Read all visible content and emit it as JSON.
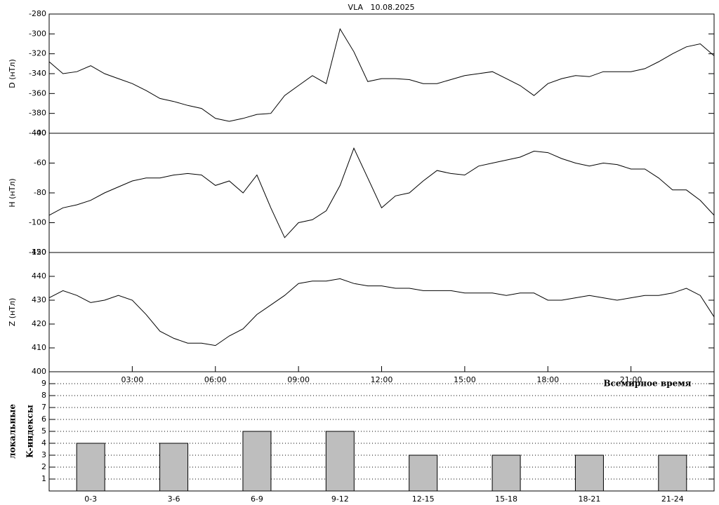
{
  "chart_data": [
    {
      "type": "line",
      "title": "VLA   10.08.2025",
      "ylabel": "D (нТл)",
      "color": "#000000",
      "xlim": [
        0,
        24
      ],
      "ylim": [
        -400,
        -280
      ],
      "yticks": [
        -400,
        -380,
        -360,
        -340,
        -320,
        -300,
        -280
      ],
      "x": [
        0,
        0.5,
        1,
        1.5,
        2,
        2.5,
        3,
        3.5,
        4,
        4.5,
        5,
        5.5,
        6,
        6.5,
        7,
        7.5,
        8,
        8.5,
        9,
        9.5,
        10,
        10.5,
        11,
        11.5,
        12,
        12.5,
        13,
        13.5,
        14,
        14.5,
        15,
        15.5,
        16,
        16.5,
        17,
        17.5,
        18,
        18.5,
        19,
        19.5,
        20,
        20.5,
        21,
        21.5,
        22,
        22.5,
        23,
        23.5,
        24
      ],
      "values": [
        -328,
        -340,
        -338,
        -332,
        -340,
        -345,
        -350,
        -357,
        -365,
        -368,
        -372,
        -375,
        -385,
        -388,
        -385,
        -381,
        -380,
        -362,
        -352,
        -342,
        -350,
        -295,
        -318,
        -348,
        -345,
        -345,
        -346,
        -350,
        -350,
        -346,
        -342,
        -340,
        -338,
        -345,
        -352,
        -362,
        -350,
        -345,
        -342,
        -343,
        -338,
        -338,
        -338,
        -335,
        -328,
        -320,
        -313,
        -310,
        -322
      ]
    },
    {
      "type": "line",
      "ylabel": "H (нТл)",
      "color": "#000000",
      "xlim": [
        0,
        24
      ],
      "ylim": [
        -120,
        -40
      ],
      "yticks": [
        -120,
        -100,
        -80,
        -60,
        -40
      ],
      "x": [
        0,
        0.5,
        1,
        1.5,
        2,
        2.5,
        3,
        3.5,
        4,
        4.5,
        5,
        5.5,
        6,
        6.5,
        7,
        7.5,
        8,
        8.5,
        9,
        9.5,
        10,
        10.5,
        11,
        11.5,
        12,
        12.5,
        13,
        13.5,
        14,
        14.5,
        15,
        15.5,
        16,
        16.5,
        17,
        17.5,
        18,
        18.5,
        19,
        19.5,
        20,
        20.5,
        21,
        21.5,
        22,
        22.5,
        23,
        23.5,
        24
      ],
      "values": [
        -95,
        -90,
        -88,
        -85,
        -80,
        -76,
        -72,
        -70,
        -70,
        -68,
        -67,
        -68,
        -75,
        -72,
        -80,
        -68,
        -90,
        -110,
        -100,
        -98,
        -92,
        -75,
        -50,
        -70,
        -90,
        -82,
        -80,
        -72,
        -65,
        -67,
        -68,
        -62,
        -60,
        -58,
        -56,
        -52,
        -53,
        -57,
        -60,
        -62,
        -60,
        -61,
        -64,
        -64,
        -70,
        -78,
        -78,
        -85,
        -95
      ]
    },
    {
      "type": "line",
      "ylabel": "Z (нТл)",
      "xlabel": "Всемирное время",
      "color": "#000000",
      "xlim": [
        0,
        24
      ],
      "ylim": [
        400,
        450
      ],
      "yticks": [
        400,
        410,
        420,
        430,
        440,
        450
      ],
      "xticks": [
        {
          "value": 3,
          "label": "03:00"
        },
        {
          "value": 6,
          "label": "06:00"
        },
        {
          "value": 9,
          "label": "09:00"
        },
        {
          "value": 12,
          "label": "12:00"
        },
        {
          "value": 15,
          "label": "15:00"
        },
        {
          "value": 18,
          "label": "18:00"
        },
        {
          "value": 21,
          "label": "21:00"
        }
      ],
      "x": [
        0,
        0.5,
        1,
        1.5,
        2,
        2.5,
        3,
        3.5,
        4,
        4.5,
        5,
        5.5,
        6,
        6.5,
        7,
        7.5,
        8,
        8.5,
        9,
        9.5,
        10,
        10.5,
        11,
        11.5,
        12,
        12.5,
        13,
        13.5,
        14,
        14.5,
        15,
        15.5,
        16,
        16.5,
        17,
        17.5,
        18,
        18.5,
        19,
        19.5,
        20,
        20.5,
        21,
        21.5,
        22,
        22.5,
        23,
        23.5,
        24
      ],
      "values": [
        431,
        434,
        432,
        429,
        430,
        432,
        430,
        424,
        417,
        414,
        412,
        412,
        411,
        415,
        418,
        424,
        428,
        432,
        437,
        438,
        438,
        439,
        437,
        436,
        436,
        435,
        435,
        434,
        434,
        434,
        433,
        433,
        433,
        432,
        433,
        433,
        430,
        430,
        431,
        432,
        431,
        430,
        431,
        432,
        432,
        433,
        435,
        432,
        423
      ]
    },
    {
      "type": "bar",
      "ylabel": [
        "локальные",
        "K-индексы"
      ],
      "color": "#bebebe",
      "grid": true,
      "ylim": [
        0,
        10
      ],
      "yticks": [
        1,
        2,
        3,
        4,
        5,
        6,
        7,
        8,
        9
      ],
      "categories": [
        "0-3",
        "3-6",
        "6-9",
        "9-12",
        "12-15",
        "15-18",
        "18-21",
        "21-24"
      ],
      "values": [
        4,
        4,
        5,
        5,
        3,
        3,
        3,
        3
      ]
    }
  ]
}
